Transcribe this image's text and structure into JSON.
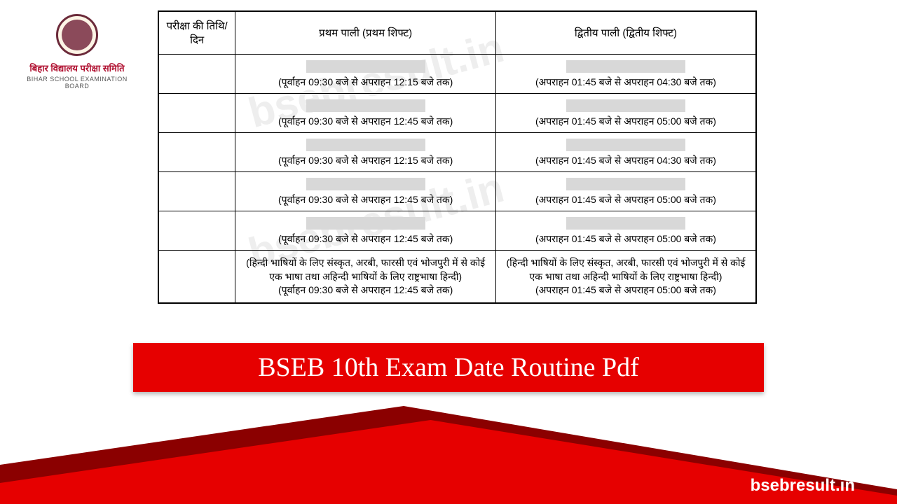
{
  "logo": {
    "title_hi": "बिहार विद्यालय परीक्षा समिति",
    "title_en": "BIHAR SCHOOL EXAMINATION BOARD"
  },
  "table": {
    "headers": {
      "date": "परीक्षा की तिथि/दिन",
      "shift1": "प्रथम पाली (प्रथम शिफ्ट)",
      "shift2": "द्वितीय पाली (द्वितीय शिफ्ट)"
    },
    "rows": [
      {
        "s1": "(पूर्वाहन 09:30 बजे से अपराहन 12:15 बजे तक)",
        "s2": "(अपराहन 01:45 बजे से अपराहन 04:30 बजे तक)"
      },
      {
        "s1": "(पूर्वाहन 09:30 बजे से अपराहन 12:45 बजे तक)",
        "s2": "(अपराहन 01:45 बजे से अपराहन 05:00 बजे तक)"
      },
      {
        "s1": "(पूर्वाहन 09:30 बजे से अपराहन 12:15 बजे तक)",
        "s2": "(अपराहन 01:45 बजे से अपराहन 04:30 बजे तक)"
      },
      {
        "s1": "(पूर्वाहन 09:30 बजे से अपराहन 12:45 बजे तक)",
        "s2": "(अपराहन 01:45 बजे से अपराहन 05:00 बजे तक)"
      },
      {
        "s1": "(पूर्वाहन 09:30 बजे से अपराहन 12:45 बजे तक)",
        "s2": "(अपराहन 01:45 बजे से अपराहन 05:00 बजे तक)"
      }
    ],
    "lang_row": {
      "s1_text": "(हिन्दी भाषियों के लिए संस्कृत, अरबी, फारसी एवं भोजपुरी में से कोई एक भाषा तथा अहिन्दी भाषियों के लिए राष्ट्रभाषा हिन्दी)",
      "s1_time": "(पूर्वाहन 09:30 बजे से अपराहन 12:45 बजे तक)",
      "s2_text": "(हिन्दी भाषियों के लिए संस्कृत, अरबी, फारसी एवं भोजपुरी में से कोई एक भाषा तथा अहिन्दी भाषियों के लिए राष्ट्रभाषा हिन्दी)",
      "s2_time": "(अपराहन 01:45 बजे से अपराहन 05:00 बजे तक)"
    }
  },
  "banner": "BSEB 10th Exam Date Routine Pdf",
  "site_url": "bsebresult.in",
  "watermark": "bsebresult.in",
  "colors": {
    "brand_red": "#e60000",
    "dark_red": "#8b0000",
    "logo_maroon": "#6b2a3a"
  }
}
